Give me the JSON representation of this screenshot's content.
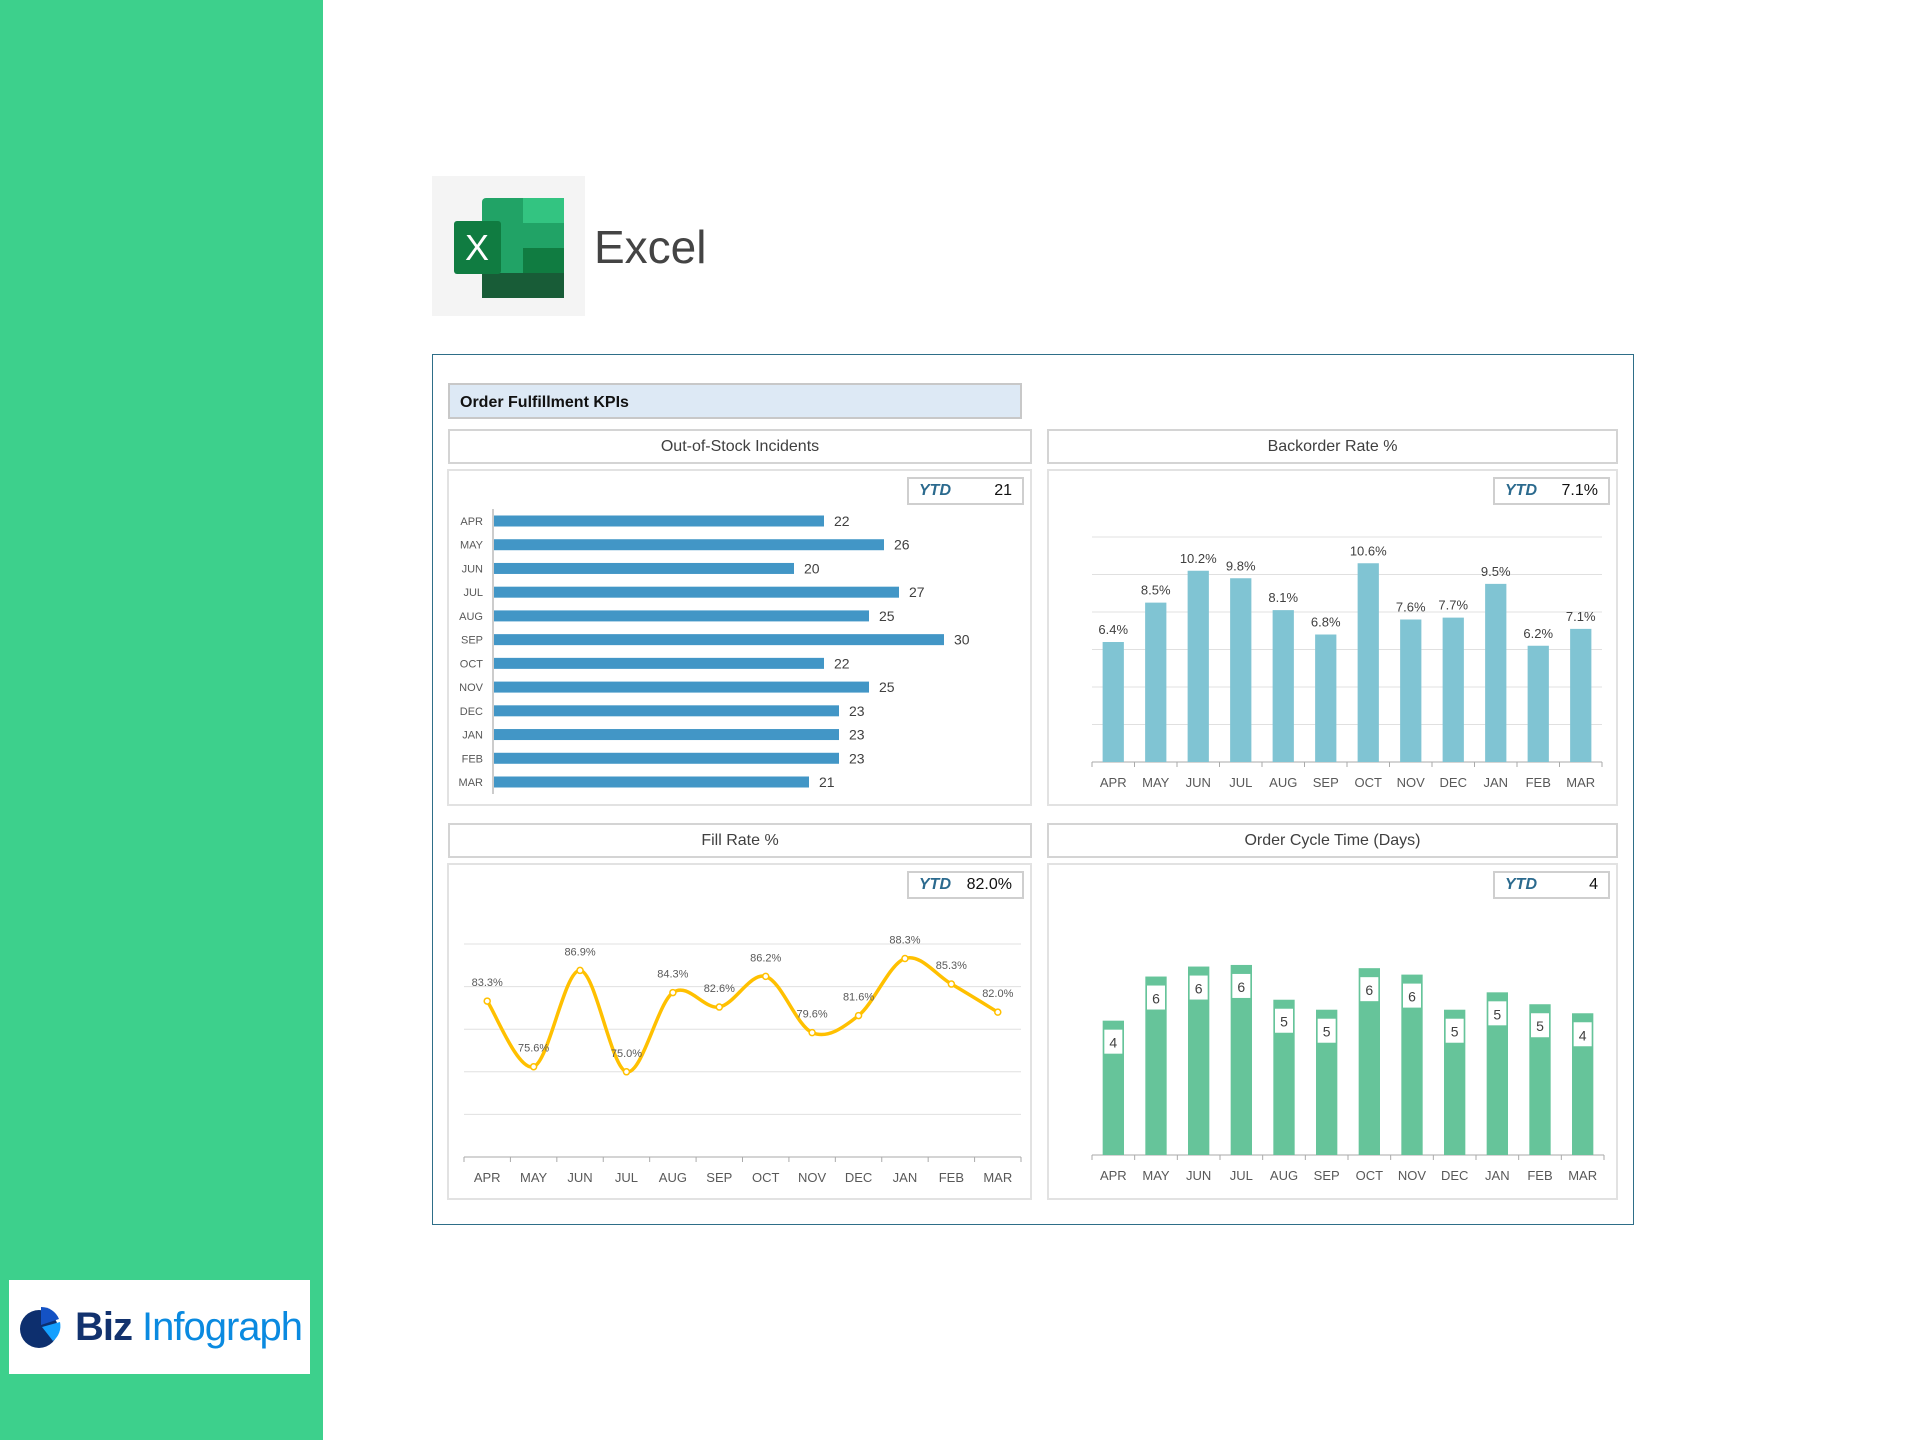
{
  "app": {
    "name": "Excel"
  },
  "brand": {
    "part1": "Biz",
    "part2": "Infograph"
  },
  "dashboard": {
    "title": "Order Fulfillment KPIs",
    "ytd_label": "YTD"
  },
  "colors": {
    "sidebar": "#3dd08c",
    "bar_blue": "#4296c6",
    "bar_teal": "#80c4d3",
    "line_gold": "#ffc000",
    "bar_green": "#66c49a"
  },
  "chart_data": [
    {
      "type": "bar",
      "orientation": "horizontal",
      "title": "Out-of-Stock Incidents",
      "ytd": "21",
      "categories": [
        "APR",
        "MAY",
        "JUN",
        "JUL",
        "AUG",
        "SEP",
        "OCT",
        "NOV",
        "DEC",
        "JAN",
        "FEB",
        "MAR"
      ],
      "values": [
        22,
        26,
        20,
        27,
        25,
        30,
        22,
        25,
        23,
        23,
        23,
        21
      ],
      "labels": [
        "22",
        "26",
        "20",
        "27",
        "25",
        "30",
        "22",
        "25",
        "23",
        "23",
        "23",
        "21"
      ],
      "xlim": [
        0,
        36
      ]
    },
    {
      "type": "bar",
      "title": "Backorder Rate %",
      "ytd": "7.1%",
      "categories": [
        "APR",
        "MAY",
        "JUN",
        "JUL",
        "AUG",
        "SEP",
        "OCT",
        "NOV",
        "DEC",
        "JAN",
        "FEB",
        "MAR"
      ],
      "values": [
        6.4,
        8.5,
        10.2,
        9.8,
        8.1,
        6.8,
        10.6,
        7.6,
        7.7,
        9.5,
        6.2,
        7.1
      ],
      "labels": [
        "6.4%",
        "8.5%",
        "10.2%",
        "9.8%",
        "8.1%",
        "6.8%",
        "10.6%",
        "7.6%",
        "7.7%",
        "9.5%",
        "6.2%",
        "7.1%"
      ],
      "ylim": [
        0,
        12
      ],
      "grid": true
    },
    {
      "type": "line",
      "smooth": true,
      "title": "Fill Rate %",
      "ytd": "82.0%",
      "categories": [
        "APR",
        "MAY",
        "JUN",
        "JUL",
        "AUG",
        "SEP",
        "OCT",
        "NOV",
        "DEC",
        "JAN",
        "FEB",
        "MAR"
      ],
      "values": [
        83.3,
        75.6,
        86.9,
        75.0,
        84.3,
        82.6,
        86.2,
        79.6,
        81.6,
        88.3,
        85.3,
        82.0
      ],
      "labels": [
        "83.3%",
        "75.6%",
        "86.9%",
        "75.0%",
        "84.3%",
        "82.6%",
        "86.2%",
        "79.6%",
        "81.6%",
        "88.3%",
        "85.3%",
        "82.0%"
      ],
      "ylim": [
        65,
        90
      ],
      "grid": true
    },
    {
      "type": "bar",
      "title": "Order Cycle Time (Days)",
      "ytd": "4",
      "categories": [
        "APR",
        "MAY",
        "JUN",
        "JUL",
        "AUG",
        "SEP",
        "OCT",
        "NOV",
        "DEC",
        "JAN",
        "FEB",
        "MAR"
      ],
      "values": [
        4.17,
        5.54,
        5.85,
        5.9,
        4.82,
        4.51,
        5.8,
        5.6,
        4.51,
        5.05,
        4.68,
        4.4
      ],
      "labels": [
        "4",
        "6",
        "6",
        "6",
        "5",
        "5",
        "6",
        "6",
        "5",
        "5",
        "5",
        "4"
      ],
      "ylim": [
        0,
        7.14
      ]
    }
  ]
}
